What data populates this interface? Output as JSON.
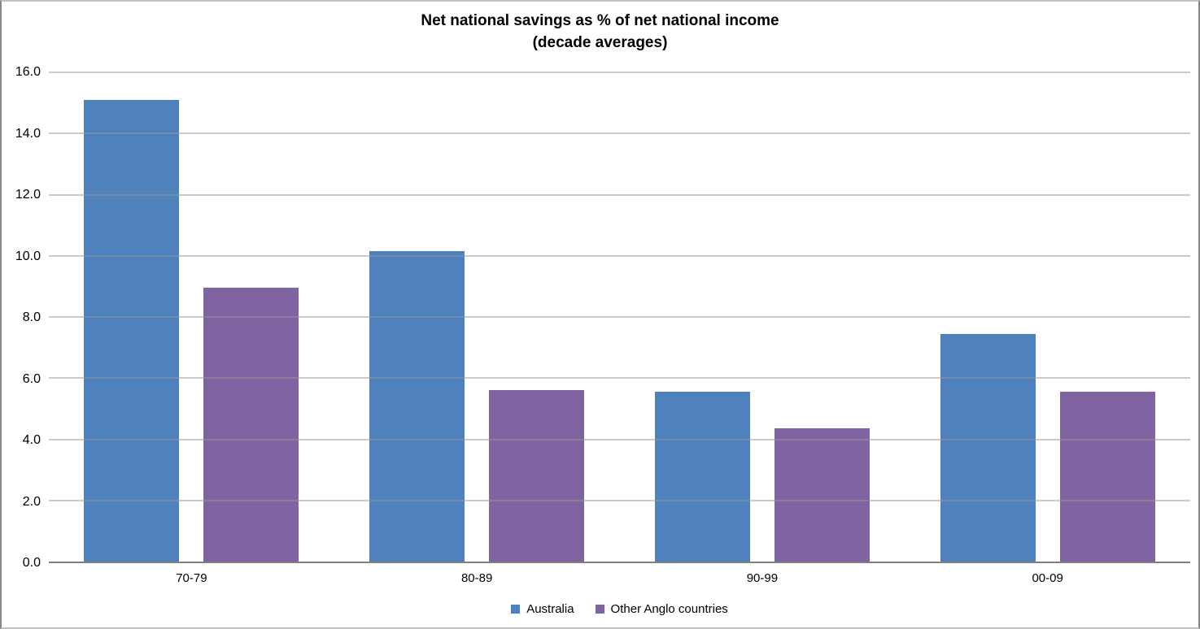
{
  "chart_data": {
    "type": "bar",
    "title": "Net national savings as % of net national income",
    "subtitle": "(decade averages)",
    "categories": [
      "70-79",
      "80-89",
      "90-99",
      "00-09"
    ],
    "series": [
      {
        "name": "Australia",
        "color": "#4F81BD",
        "values": [
          15.1,
          10.15,
          5.55,
          7.45
        ]
      },
      {
        "name": "Other Anglo countries",
        "color": "#8064A2",
        "values": [
          8.95,
          5.6,
          4.35,
          5.55
        ]
      }
    ],
    "ylim": [
      0,
      16
    ],
    "ytick_step": 2,
    "ytick_labels": [
      "0.0",
      "2.0",
      "4.0",
      "6.0",
      "8.0",
      "10.0",
      "12.0",
      "14.0",
      "16.0"
    ],
    "xlabel": "",
    "ylabel": "",
    "grid": true,
    "legend_position": "bottom",
    "colors": {
      "gridline": "#969696",
      "axis_line": "#7f7f7f",
      "title_text": "#000000",
      "frame_border": "#868686"
    }
  }
}
